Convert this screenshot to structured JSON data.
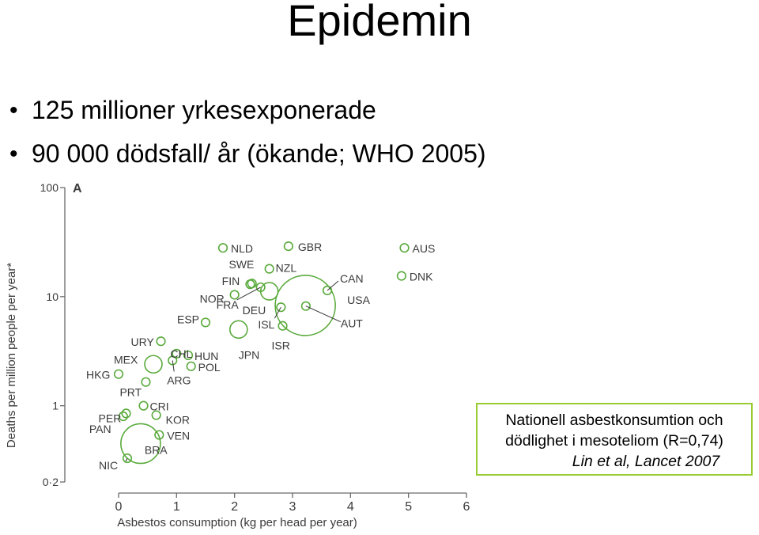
{
  "title": "Epidemin",
  "bullets": [
    "125 millioner yrkesexponerade",
    "90 000 dödsfall/ år (ökande; WHO 2005)"
  ],
  "note": {
    "line1": "Nationell asbestkonsumtion och",
    "line2": "dödlighet i mesoteliom (R=0,74)",
    "citation": "Lin et al, Lancet 2007"
  },
  "chart_data": {
    "type": "scatter",
    "panel_label": "A",
    "xlabel": "Asbestos consumption (kg per head per year)",
    "ylabel": "Deaths per million people per year*",
    "x_scale": "linear",
    "y_scale": "log",
    "xlim": [
      0,
      6
    ],
    "ylim": [
      0.2,
      100
    ],
    "x_ticks": [
      "0",
      "1",
      "2",
      "3",
      "4",
      "5",
      "6"
    ],
    "y_ticks": [
      {
        "value": 0.2,
        "label": "0·2"
      },
      {
        "value": 1,
        "label": "1"
      },
      {
        "value": 10,
        "label": "10"
      },
      {
        "value": 100,
        "label": "100"
      }
    ],
    "marker_color": "#5aaa3c",
    "points": [
      {
        "label": "NLD",
        "x": 1.8,
        "y": 28,
        "size": "small"
      },
      {
        "label": "GBR",
        "x": 2.93,
        "y": 29,
        "size": "small"
      },
      {
        "label": "AUS",
        "x": 4.93,
        "y": 28,
        "size": "small"
      },
      {
        "label": "NZL",
        "x": 2.6,
        "y": 18,
        "size": "small"
      },
      {
        "label": "SWE",
        "x": 2.27,
        "y": 13,
        "size": "small"
      },
      {
        "label": "FIN",
        "x": 2.3,
        "y": 13.2,
        "size": "small"
      },
      {
        "label": "NOR",
        "x": 2.0,
        "y": 10.4,
        "size": "small"
      },
      {
        "label": "FRA",
        "x": 2.45,
        "y": 12.2,
        "size": "small"
      },
      {
        "label": "DEU",
        "x": 2.6,
        "y": 11.2,
        "size": "medium"
      },
      {
        "label": "ISL",
        "x": 2.8,
        "y": 8.0,
        "size": "small"
      },
      {
        "label": "ISR",
        "x": 2.83,
        "y": 5.4,
        "size": "small"
      },
      {
        "label": "CAN",
        "x": 3.6,
        "y": 11.4,
        "size": "small"
      },
      {
        "label": "USA",
        "x": 3.22,
        "y": 8.3,
        "size": "large"
      },
      {
        "label": "AUT",
        "x": 3.23,
        "y": 8.2,
        "size": "small"
      },
      {
        "label": "DNK",
        "x": 4.88,
        "y": 15.5,
        "size": "small"
      },
      {
        "label": "ESP",
        "x": 1.5,
        "y": 5.8,
        "size": "small"
      },
      {
        "label": "JPN",
        "x": 2.07,
        "y": 5.0,
        "size": "medium"
      },
      {
        "label": "URY",
        "x": 0.73,
        "y": 3.9,
        "size": "small"
      },
      {
        "label": "CHL",
        "x": 1.0,
        "y": 3.0,
        "size": "small"
      },
      {
        "label": "HUN",
        "x": 1.2,
        "y": 2.9,
        "size": "small"
      },
      {
        "label": "MEX",
        "x": 0.6,
        "y": 2.4,
        "size": "medium"
      },
      {
        "label": "POL",
        "x": 1.25,
        "y": 2.3,
        "size": "small"
      },
      {
        "label": "ARG",
        "x": 0.93,
        "y": 2.6,
        "size": "small"
      },
      {
        "label": "HKG",
        "x": 0.0,
        "y": 1.95,
        "size": "small"
      },
      {
        "label": "PRT",
        "x": 0.47,
        "y": 1.65,
        "size": "small"
      },
      {
        "label": "CRI",
        "x": 0.43,
        "y": 1.0,
        "size": "small"
      },
      {
        "label": "PER",
        "x": 0.13,
        "y": 0.85,
        "size": "small"
      },
      {
        "label": "PAN",
        "x": 0.08,
        "y": 0.8,
        "size": "small"
      },
      {
        "label": "KOR",
        "x": 0.65,
        "y": 0.82,
        "size": "small"
      },
      {
        "label": "VEN",
        "x": 0.7,
        "y": 0.54,
        "size": "small"
      },
      {
        "label": "NIC",
        "x": 0.15,
        "y": 0.33,
        "size": "small"
      },
      {
        "label": "BRA",
        "x": 0.38,
        "y": 0.45,
        "size": "large"
      }
    ]
  }
}
